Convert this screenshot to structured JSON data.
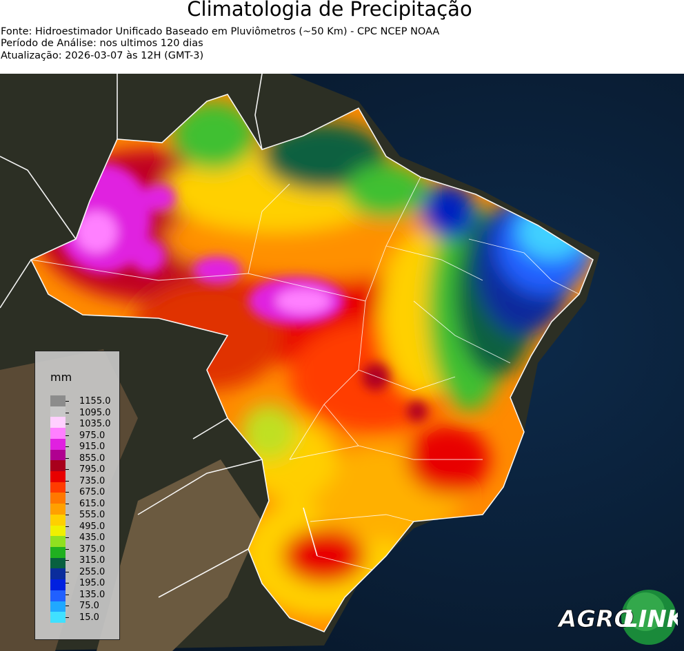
{
  "header": {
    "title": "Climatologia de Precipitação",
    "source": "Fonte: Hidroestimador Unificado Baseado em Pluviômetros (~50 Km) - CPC NCEP NOAA",
    "period": "Período de Análise: nos ultimos 120 dias",
    "updated": "Atualização: 2026-03-07 às 12H (GMT-3)"
  },
  "legend": {
    "unit": "mm",
    "levels": [
      "1155.0",
      "1095.0",
      "1035.0",
      "975.0",
      "915.0",
      "855.0",
      "795.0",
      "735.0",
      "675.0",
      "615.0",
      "555.0",
      "495.0",
      "435.0",
      "375.0",
      "315.0",
      "255.0",
      "195.0",
      "135.0",
      "75.0",
      "15.0"
    ],
    "colors": [
      "#8c8c8c",
      "#c8c8c8",
      "#ffd0ff",
      "#ff80ff",
      "#e020e0",
      "#b00090",
      "#a8001c",
      "#e80000",
      "#ff3c00",
      "#ff7800",
      "#ffa000",
      "#ffd000",
      "#f0f000",
      "#90e020",
      "#20b020",
      "#086040",
      "#0a2c9c",
      "#0020e0",
      "#2060ff",
      "#20a8ff",
      "#40e0ff"
    ]
  },
  "logo": {
    "part1": "AGRO",
    "part2": "LINK"
  }
}
